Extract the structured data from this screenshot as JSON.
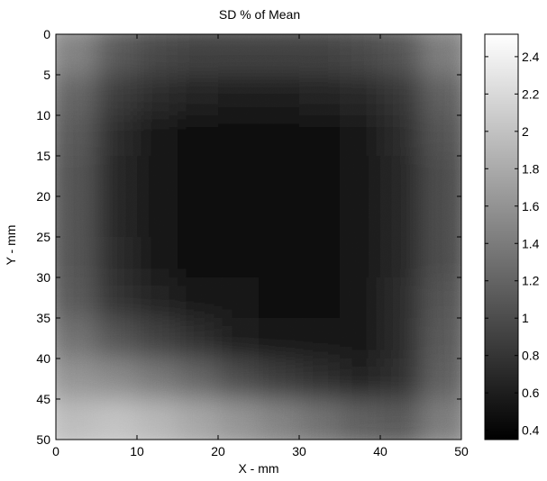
{
  "chart_data": {
    "type": "heatmap",
    "title": "SD % of Mean",
    "xlabel": "X - mm",
    "ylabel": "Y - mm",
    "xlim": [
      0,
      50
    ],
    "ylim": [
      0,
      50
    ],
    "y_axis_reversed": true,
    "x_ticks": [
      0,
      10,
      20,
      30,
      40,
      50
    ],
    "y_ticks": [
      0,
      5,
      10,
      15,
      20,
      25,
      30,
      35,
      40,
      45,
      50
    ],
    "colorbar": {
      "colormap": "gray",
      "range": [
        0.35,
        2.52
      ],
      "ticks": [
        0.4,
        0.6,
        0.8,
        1,
        1.2,
        1.4,
        1.6,
        1.8,
        2,
        2.2,
        2.4
      ]
    },
    "x_centers": [
      2.5,
      7.5,
      12.5,
      17.5,
      22.5,
      27.5,
      32.5,
      37.5,
      42.5,
      47.5
    ],
    "y_centers": [
      2.5,
      7.5,
      12.5,
      17.5,
      22.5,
      27.5,
      32.5,
      37.5,
      42.5,
      47.5
    ],
    "values": [
      [
        1.45,
        1.1,
        0.95,
        0.9,
        0.9,
        0.9,
        0.9,
        0.95,
        1.05,
        1.4
      ],
      [
        1.2,
        0.85,
        0.7,
        0.62,
        0.6,
        0.6,
        0.62,
        0.68,
        0.8,
        1.15
      ],
      [
        1.1,
        0.72,
        0.55,
        0.48,
        0.46,
        0.46,
        0.48,
        0.55,
        0.72,
        1.05
      ],
      [
        1.05,
        0.68,
        0.52,
        0.46,
        0.44,
        0.44,
        0.46,
        0.52,
        0.68,
        1.0
      ],
      [
        1.05,
        0.68,
        0.52,
        0.46,
        0.44,
        0.44,
        0.46,
        0.52,
        0.68,
        1.0
      ],
      [
        1.05,
        0.7,
        0.55,
        0.48,
        0.46,
        0.46,
        0.48,
        0.52,
        0.68,
        1.0
      ],
      [
        1.1,
        0.78,
        0.62,
        0.55,
        0.5,
        0.48,
        0.48,
        0.52,
        0.7,
        1.05
      ],
      [
        1.3,
        1.05,
        0.9,
        0.75,
        0.6,
        0.52,
        0.5,
        0.52,
        0.7,
        1.1
      ],
      [
        1.6,
        1.5,
        1.35,
        1.2,
        1.0,
        0.85,
        0.75,
        0.65,
        0.75,
        1.15
      ],
      [
        1.95,
        2.0,
        1.9,
        1.75,
        1.6,
        1.45,
        1.3,
        1.15,
        1.1,
        1.4
      ]
    ]
  }
}
